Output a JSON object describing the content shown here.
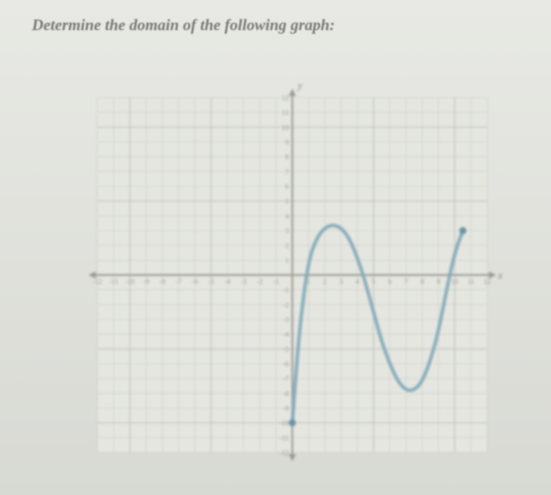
{
  "prompt": {
    "title": "Determine the domain of the following graph:",
    "title_fontsize": 18,
    "title_color": "#7a7a75"
  },
  "chart": {
    "type": "line",
    "xlim": [
      -12,
      12
    ],
    "ylim": [
      -12,
      12
    ],
    "xtick_step": 1,
    "ytick_step": 1,
    "background_color": "#e5e6e0",
    "grid_color": "#c8c9c3",
    "grid_major_color": "#bfc0ba",
    "axis_color": "#9a9b95",
    "axis_width": 2,
    "axis_labels": {
      "x": "x",
      "y": "y"
    },
    "axis_label_color": "#8a8b85",
    "tick_label_fontsize": 8,
    "tick_label_color": "#9a9b95",
    "curve": {
      "color": "#7fa8b8",
      "width": 4,
      "points": [
        [
          0,
          -10
        ],
        [
          0.2,
          -7
        ],
        [
          0.5,
          -3
        ],
        [
          1,
          1
        ],
        [
          1.5,
          2.5
        ],
        [
          2,
          3.2
        ],
        [
          2.5,
          3.4
        ],
        [
          3,
          3.2
        ],
        [
          3.5,
          2.5
        ],
        [
          4,
          1.2
        ],
        [
          4.5,
          -0.5
        ],
        [
          5,
          -2.5
        ],
        [
          5.5,
          -4.5
        ],
        [
          6,
          -6
        ],
        [
          6.5,
          -7.2
        ],
        [
          7,
          -7.8
        ],
        [
          7.5,
          -7.8
        ],
        [
          8,
          -7.2
        ],
        [
          8.5,
          -5.8
        ],
        [
          9,
          -3.8
        ],
        [
          9.5,
          -1
        ],
        [
          10,
          1.5
        ],
        [
          10.5,
          3
        ]
      ],
      "start_point": {
        "x": 0,
        "y": -10,
        "open": false
      },
      "end_point": {
        "x": 10.5,
        "y": 3,
        "open": false
      },
      "endpoint_color": "#6a95a8",
      "endpoint_radius": 4
    },
    "xticks": [
      -12,
      -11,
      -10,
      -9,
      -8,
      -7,
      -6,
      -5,
      -4,
      -3,
      -2,
      -1,
      1,
      2,
      3,
      4,
      5,
      6,
      7,
      8,
      9,
      10,
      11,
      12
    ],
    "yticks": [
      -12,
      -11,
      -10,
      -9,
      -8,
      -7,
      -6,
      -5,
      -4,
      -3,
      -2,
      -1,
      1,
      2,
      3,
      4,
      5,
      6,
      7,
      8,
      9,
      10,
      11,
      12
    ]
  }
}
